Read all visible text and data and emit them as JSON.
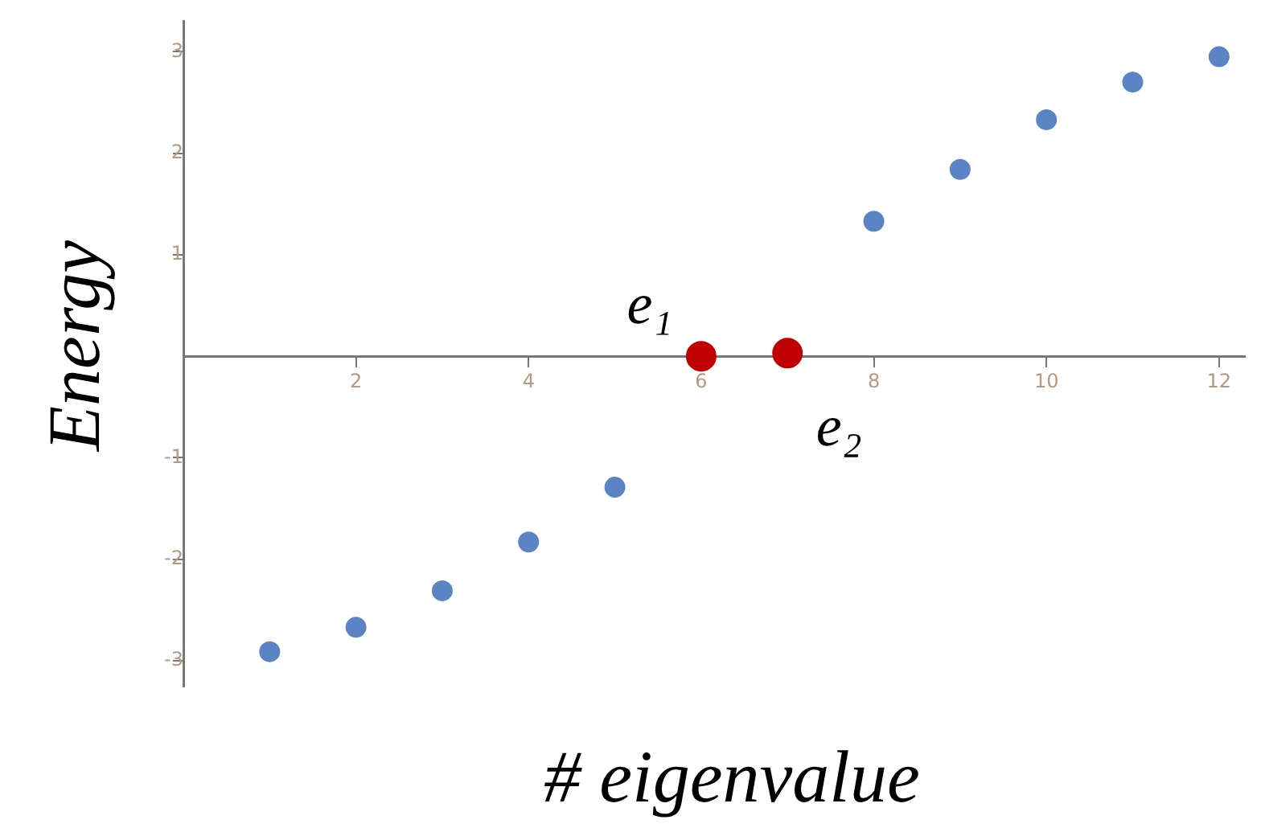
{
  "chart_data": {
    "type": "scatter",
    "xlabel": "# eigenvalue",
    "ylabel": "Energy",
    "x": [
      1,
      2,
      3,
      4,
      5,
      6,
      7,
      8,
      9,
      10,
      11,
      12
    ],
    "series": [
      {
        "color": "#5b84c4",
        "values": [
          -2.91,
          -2.67,
          -2.31,
          -1.83,
          -1.29,
          null,
          null,
          1.33,
          1.84,
          2.33,
          2.7,
          2.95
        ]
      },
      {
        "color": "#c00000",
        "values": [
          null,
          null,
          null,
          null,
          null,
          0,
          0.03,
          null,
          null,
          null,
          null,
          null
        ]
      }
    ],
    "annotations": [
      "e₁",
      "e₂"
    ],
    "xlim": [
      0,
      12.3
    ],
    "ylim": [
      -3.25,
      3.3
    ],
    "xticks": [
      2,
      4,
      6,
      8,
      10,
      12
    ],
    "yticks": [
      -3,
      -2,
      -1,
      1,
      2,
      3
    ],
    "marker": "circle",
    "grid": false,
    "legend": false
  }
}
